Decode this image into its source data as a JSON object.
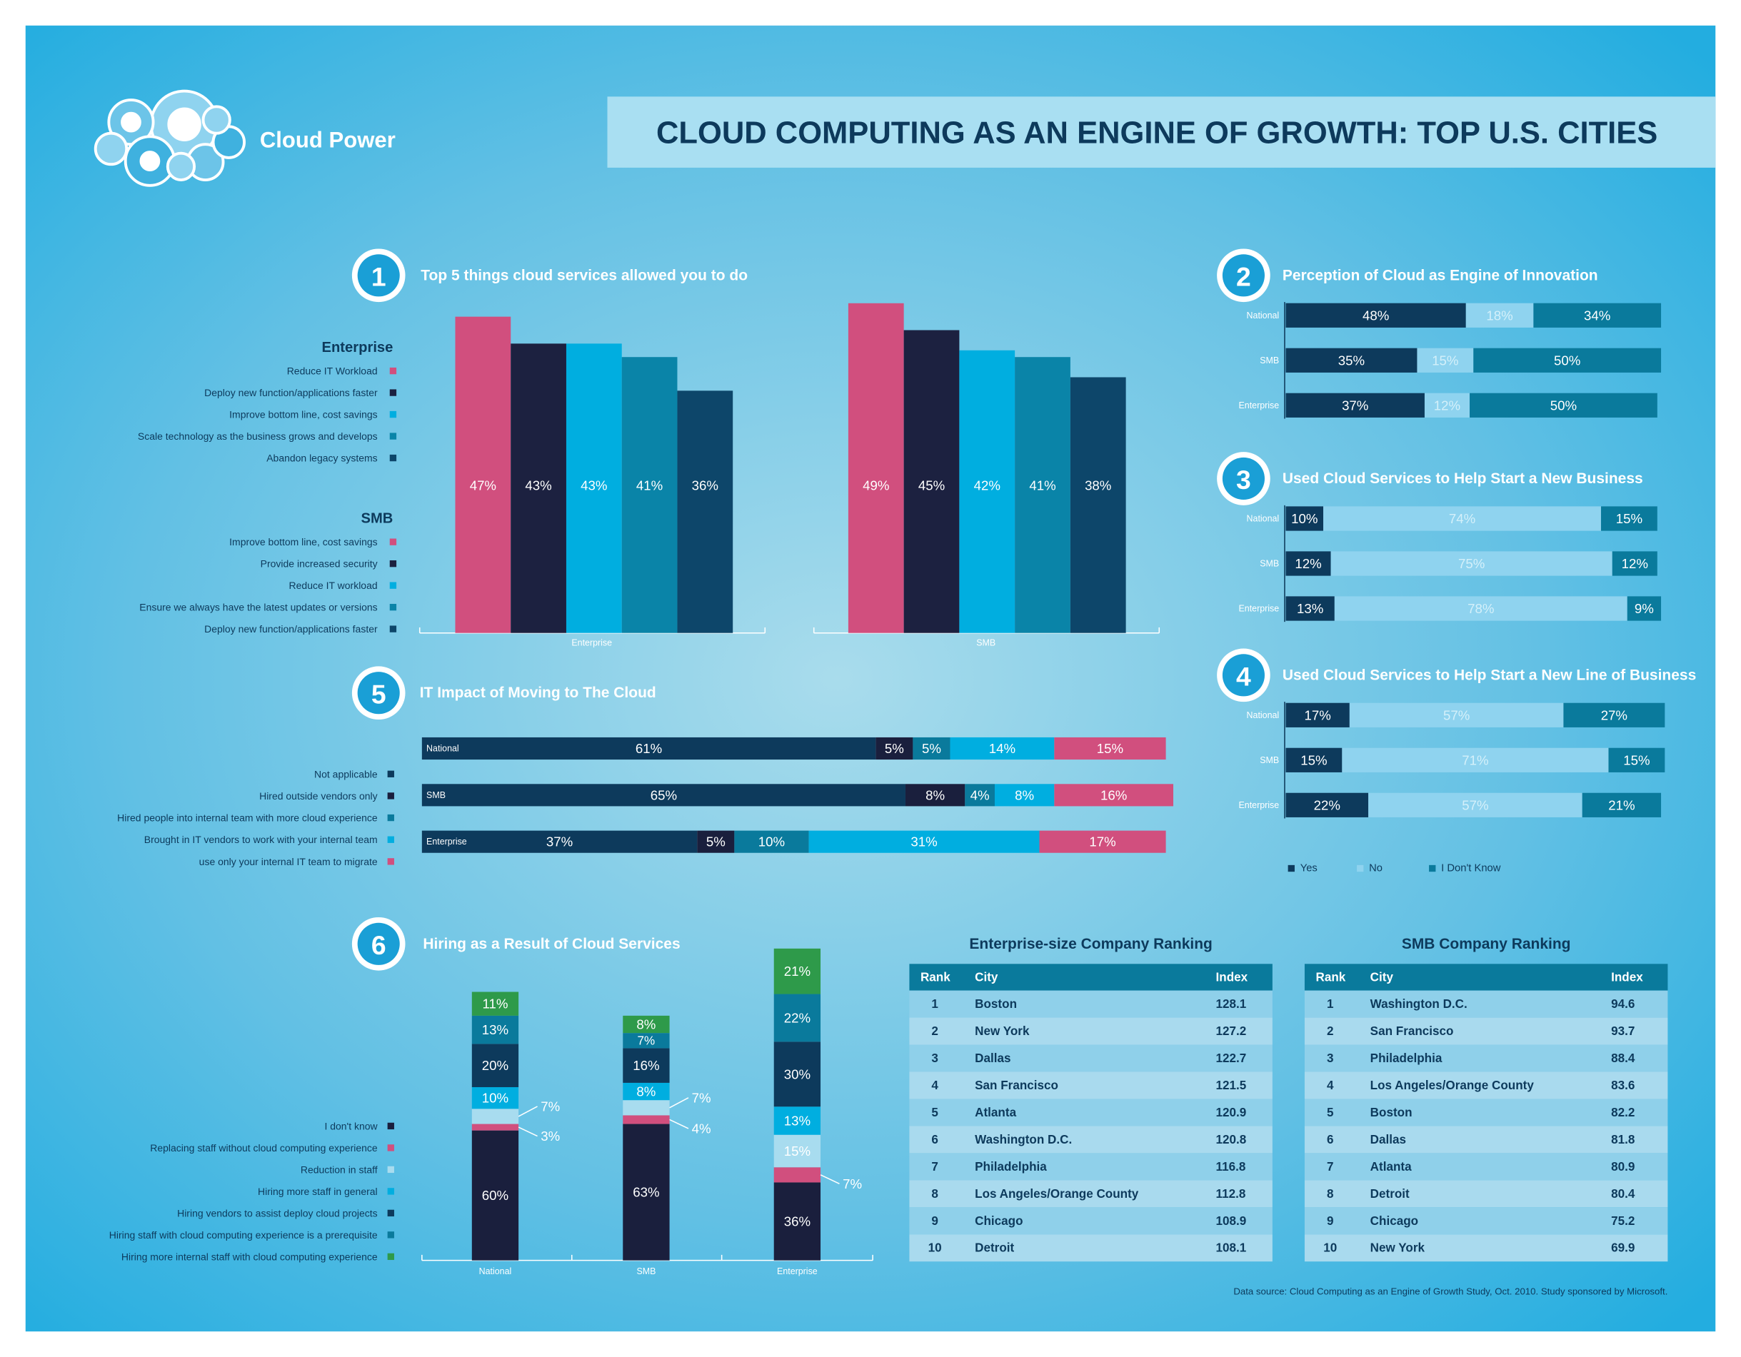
{
  "header": {
    "brand": "Cloud Power",
    "title": "CLOUD COMPUTING AS AN ENGINE OF GROWTH: TOP U.S. CITIES"
  },
  "chart_data": [
    {
      "type": "bar",
      "number": "1",
      "title": "Top 5 things cloud services allowed you to do",
      "ylim": [
        0,
        50
      ],
      "colors": [
        "#d14f7e",
        "#1c2140",
        "#00aee0",
        "#0a84a8",
        "#0d466a"
      ],
      "panels": [
        {
          "name": "Enterprise",
          "categories": [
            "Reduce IT Workload",
            "Deploy new function/applications faster",
            "Improve bottom line, cost savings",
            "Scale technology as the business grows and develops",
            "Abandon legacy systems"
          ],
          "values": [
            47,
            43,
            43,
            41,
            36
          ],
          "value_labels": [
            "47%",
            "43%",
            "43%",
            "41%",
            "36%"
          ]
        },
        {
          "name": "SMB",
          "categories": [
            "Improve bottom line, cost savings",
            "Provide increased security",
            "Reduce IT workload",
            "Ensure we always have the latest updates or versions",
            "Deploy new function/applications faster"
          ],
          "values": [
            49,
            45,
            42,
            41,
            38
          ],
          "value_labels": [
            "49%",
            "45%",
            "42%",
            "41%",
            "38%"
          ]
        }
      ]
    },
    {
      "type": "barh-panels",
      "xlim": [
        0,
        100
      ],
      "series": [
        {
          "name": "Yes",
          "color": "#0d3a5c"
        },
        {
          "name": "No",
          "color": "#8fd3ef"
        },
        {
          "name": "I Don't Know",
          "color": "#0a7a9c"
        }
      ],
      "panels": [
        {
          "number": "2",
          "title": "Perception of Cloud as Engine of Innovation",
          "categories": [
            "National",
            "SMB",
            "Enterprise"
          ],
          "values": [
            [
              48,
              35,
              37
            ],
            [
              18,
              15,
              12
            ],
            [
              34,
              50,
              50
            ]
          ],
          "value_labels": [
            [
              "48%",
              "35%",
              "37%"
            ],
            [
              "18%",
              "15%",
              "12%"
            ],
            [
              "34%",
              "50%",
              "50%"
            ]
          ]
        },
        {
          "number": "3",
          "title": "Used Cloud Services to Help Start a New Business",
          "categories": [
            "National",
            "SMB",
            "Enterprise"
          ],
          "values": [
            [
              10,
              12,
              13
            ],
            [
              74,
              75,
              78
            ],
            [
              15,
              12,
              9
            ]
          ],
          "value_labels": [
            [
              "10%",
              "12%",
              "13%"
            ],
            [
              "74%",
              "75%",
              "78%"
            ],
            [
              "15%",
              "12%",
              "9%"
            ]
          ]
        },
        {
          "number": "4",
          "title": "Used Cloud Services to Help Start a New Line of Business",
          "categories": [
            "National",
            "SMB",
            "Enterprise"
          ],
          "values": [
            [
              17,
              15,
              22
            ],
            [
              57,
              71,
              57
            ],
            [
              27,
              15,
              21
            ]
          ],
          "value_labels": [
            [
              "17%",
              "15%",
              "22%"
            ],
            [
              "57%",
              "71%",
              "57%"
            ],
            [
              "27%",
              "15%",
              "21%"
            ]
          ]
        }
      ]
    },
    {
      "type": "barh",
      "number": "5",
      "title": "IT Impact of Moving to The Cloud",
      "xlim": [
        0,
        100
      ],
      "categories": [
        "National",
        "SMB",
        "Enterprise"
      ],
      "series": [
        {
          "name": "Not applicable",
          "color": "#0d3a5c",
          "values": [
            61,
            65,
            37
          ],
          "value_labels": [
            "61%",
            "65%",
            "37%"
          ]
        },
        {
          "name": "Hired outside vendors only",
          "color": "#1a1f3d",
          "values": [
            5,
            8,
            5
          ],
          "value_labels": [
            "5%",
            "8%",
            "5%"
          ]
        },
        {
          "name": "Hired people into internal team with more cloud experience",
          "color": "#0a7a9c",
          "values": [
            5,
            4,
            10
          ],
          "value_labels": [
            "5%",
            "4%",
            "10%"
          ]
        },
        {
          "name": "Brought in IT vendors to work with your internal team",
          "color": "#00aee0",
          "values": [
            14,
            8,
            31
          ],
          "value_labels": [
            "14%",
            "8%",
            "31%"
          ]
        },
        {
          "name": "use only your internal IT team to migrate",
          "color": "#d14f7e",
          "values": [
            15,
            16,
            17
          ],
          "value_labels": [
            "15%",
            "16%",
            "17%"
          ]
        }
      ]
    },
    {
      "type": "bar-stacked",
      "number": "6",
      "title": "Hiring as a Result of Cloud Services",
      "ylim": [
        0,
        150
      ],
      "categories": [
        "National",
        "SMB",
        "Enterprise"
      ],
      "series": [
        {
          "name": "I don't know",
          "color": "#1a1f3d",
          "values": [
            60,
            63,
            36
          ],
          "value_labels": [
            "60%",
            "63%",
            "36%"
          ]
        },
        {
          "name": "Replacing staff without cloud computing experience",
          "color": "#d14f7e",
          "values": [
            3,
            4,
            7
          ],
          "value_labels": [
            "3%",
            "4%",
            "7%"
          ]
        },
        {
          "name": "Reduction in staff",
          "color": "#a8dcef",
          "values": [
            7,
            7,
            15
          ],
          "value_labels": [
            "7%",
            "7%",
            "15%"
          ]
        },
        {
          "name": "Hiring more staff in general",
          "color": "#00aee0",
          "values": [
            10,
            8,
            13
          ],
          "value_labels": [
            "10%",
            "8%",
            "13%"
          ]
        },
        {
          "name": "Hiring vendors to assist deploy cloud projects",
          "color": "#0d3a5c",
          "values": [
            20,
            16,
            30
          ],
          "value_labels": [
            "20%",
            "16%",
            "30%"
          ]
        },
        {
          "name": "Hiring staff with cloud computing experience is a prerequisite",
          "color": "#0a7a9c",
          "values": [
            13,
            7,
            22
          ],
          "value_labels": [
            "13%",
            "7%",
            "22%"
          ]
        },
        {
          "name": "Hiring more internal staff with cloud computing experience",
          "color": "#2e9a4a",
          "values": [
            11,
            8,
            21
          ],
          "value_labels": [
            "11%",
            "8%",
            "21%"
          ]
        }
      ]
    }
  ],
  "tables": [
    {
      "title": "Enterprise-size Company Ranking",
      "columns": [
        "Rank",
        "City",
        "Index"
      ],
      "rows": [
        [
          1,
          "Boston",
          128.1
        ],
        [
          2,
          "New York",
          127.2
        ],
        [
          3,
          "Dallas",
          122.7
        ],
        [
          4,
          "San Francisco",
          121.5
        ],
        [
          5,
          "Atlanta",
          120.9
        ],
        [
          6,
          "Washington D.C.",
          120.8
        ],
        [
          7,
          "Philadelphia",
          116.8
        ],
        [
          8,
          "Los Angeles/Orange County",
          112.8
        ],
        [
          9,
          "Chicago",
          108.9
        ],
        [
          10,
          "Detroit",
          108.1
        ]
      ]
    },
    {
      "title": "SMB Company Ranking",
      "columns": [
        "Rank",
        "City",
        "Index"
      ],
      "rows": [
        [
          1,
          "Washington D.C.",
          94.6
        ],
        [
          2,
          "San Francisco",
          93.7
        ],
        [
          3,
          "Philadelphia",
          88.4
        ],
        [
          4,
          "Los Angeles/Orange County",
          83.6
        ],
        [
          5,
          "Boston",
          82.2
        ],
        [
          6,
          "Dallas",
          81.8
        ],
        [
          7,
          "Atlanta",
          80.9
        ],
        [
          8,
          "Detroit",
          80.4
        ],
        [
          9,
          "Chicago",
          75.2
        ],
        [
          10,
          "New York",
          69.9
        ]
      ]
    }
  ],
  "source": "Data source: Cloud Computing as an Engine of Growth Study, Oct. 2010. Study sponsored by Microsoft."
}
